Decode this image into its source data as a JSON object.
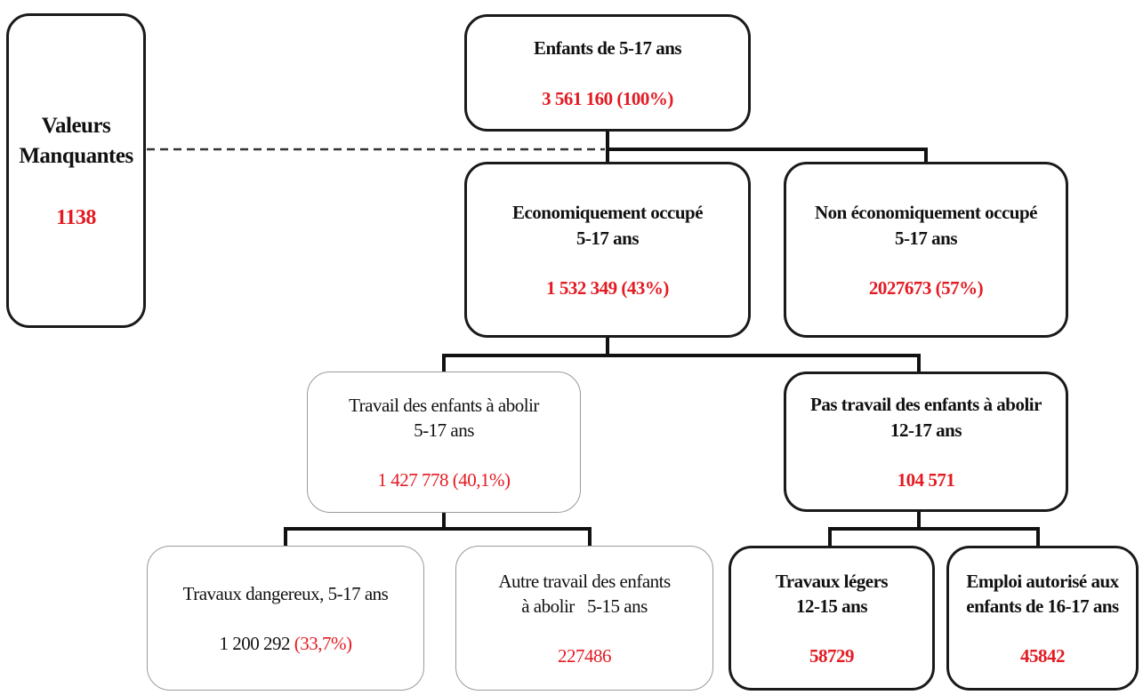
{
  "root": {
    "title": "Enfants de 5-17 ans",
    "value": "3 561 160 (100%)"
  },
  "missing": {
    "line1": "Valeurs",
    "line2": "Manquantes",
    "value": "1138"
  },
  "occupied": {
    "line1": "Economiquement occupé",
    "line2": "5-17 ans",
    "value": "1 532 349 (43%)"
  },
  "not_occupied": {
    "line1": "Non économiquement occupé",
    "line2": "5-17 ans",
    "value": "2027673 (57%)"
  },
  "to_abolish": {
    "line1": "Travail des enfants à abolir",
    "line2": "5-17 ans",
    "value": "1 427 778 (40,1%)"
  },
  "not_to_abolish": {
    "line1": "Pas travail des enfants à abolir",
    "line2": "12-17 ans",
    "value": "104 571"
  },
  "hazardous": {
    "line1": "Travaux dangereux, 5-17 ans",
    "value_number": "1 200 292",
    "value_pct": "(33,7%)"
  },
  "other_work": {
    "line1": "Autre travail des enfants",
    "line2": "à abolir   5-15 ans",
    "value": "227486"
  },
  "light_work": {
    "line1": "Travaux légers",
    "line2": "12-15 ans",
    "value": "58729"
  },
  "authorized": {
    "line1": "Emploi autorisé aux",
    "line2": "enfants de 16-17 ans",
    "value": "45842"
  },
  "colors": {
    "value_red": "#e31b23",
    "border_dark": "#1a1a1a",
    "border_light": "#9a9a9a"
  }
}
